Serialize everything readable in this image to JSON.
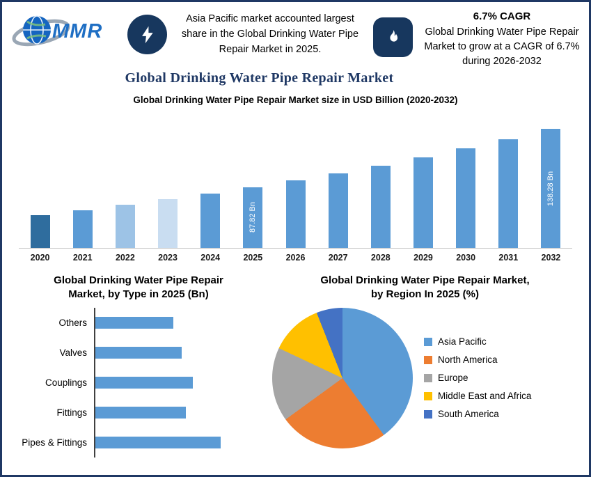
{
  "header": {
    "logo_text": "MMR",
    "left_callout": "Asia Pacific market accounted largest share in the Global Drinking Water Pipe Repair Market in 2025.",
    "cagr_heading": "6.7% CAGR",
    "cagr_body": "Global Drinking Water Pipe Repair Market to grow at a CAGR of 6.7% during 2026-2032"
  },
  "page_title": "Global Drinking Water Pipe Repair Market",
  "colors": {
    "navy": "#1f3864",
    "icon_navy": "#17375e",
    "bar_blue": "#5b9bd5"
  },
  "chart_data": [
    {
      "type": "bar",
      "title": "Global Drinking Water Pipe Repair Market size in USD Billion (2020-2032)",
      "categories": [
        "2020",
        "2021",
        "2022",
        "2023",
        "2024",
        "2025",
        "2026",
        "2027",
        "2028",
        "2029",
        "2030",
        "2031",
        "2032"
      ],
      "values": [
        63.5,
        67.8,
        72.3,
        77.2,
        82.3,
        87.82,
        93.7,
        100.0,
        106.7,
        113.8,
        121.5,
        129.6,
        138.28
      ],
      "value_labels": [
        "",
        "",
        "",
        "",
        "",
        "87.82 Bn",
        "",
        "",
        "",
        "",
        "",
        "",
        "138.28 Bn"
      ],
      "bar_colors": [
        "#2f6d9e",
        "#5b9bd5",
        "#9dc3e6",
        "#c9ddf1",
        "#5b9bd5",
        "#5b9bd5",
        "#5b9bd5",
        "#5b9bd5",
        "#5b9bd5",
        "#5b9bd5",
        "#5b9bd5",
        "#5b9bd5",
        "#5b9bd5"
      ],
      "ylabel": "USD Billion",
      "ylim": [
        0,
        150
      ],
      "note": "Only 2025 (87.82 Bn) and 2032 (138.28 Bn) are labeled; other values estimated from 6.7% CAGR trend."
    },
    {
      "type": "bar",
      "orientation": "horizontal",
      "title": "Global Drinking Water Pipe Repair Market, by Type in 2025 (Bn)",
      "categories": [
        "Others",
        "Valves",
        "Couplings",
        "Fittings",
        "Pipes & Fittings"
      ],
      "values": [
        62,
        69,
        78,
        72,
        100
      ],
      "color": "#5b9bd5",
      "note": "No value labels shown in source; values are relative bar lengths (Pipes & Fittings = 100)."
    },
    {
      "type": "pie",
      "title": "Global Drinking Water Pipe Repair Market, by Region In 2025 (%)",
      "slices": [
        {
          "label": "Asia Pacific",
          "value": 40,
          "color": "#5b9bd5"
        },
        {
          "label": "North America",
          "value": 25,
          "color": "#ed7d31"
        },
        {
          "label": "Europe",
          "value": 17,
          "color": "#a5a5a5"
        },
        {
          "label": "Middle East and Africa",
          "value": 12,
          "color": "#ffc000"
        },
        {
          "label": "South America",
          "value": 6,
          "color": "#4472c4"
        }
      ],
      "legend_position": "right",
      "note": "Percentages estimated from slice angles."
    }
  ]
}
